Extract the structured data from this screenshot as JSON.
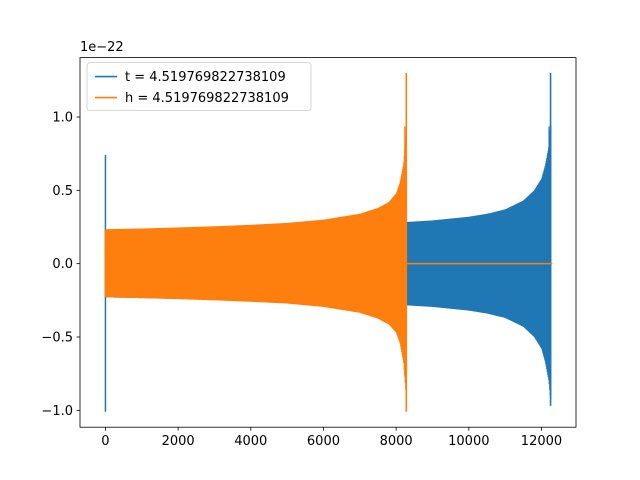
{
  "chart_data": {
    "type": "line",
    "offset_label": "1e−22",
    "xlim": [
      -700,
      12950
    ],
    "ylim": [
      -1.115,
      1.405
    ],
    "xticks": [
      0,
      2000,
      4000,
      6000,
      8000,
      10000,
      12000
    ],
    "xtick_labels": [
      "0",
      "2000",
      "4000",
      "6000",
      "8000",
      "10000",
      "12000"
    ],
    "yticks": [
      -1.0,
      -0.5,
      0.0,
      0.5,
      1.0
    ],
    "ytick_labels": [
      "−1.0",
      "−0.5",
      "0.0",
      "0.5",
      "1.0"
    ],
    "grid": false,
    "legend_position": "top-left",
    "series": [
      {
        "name": "t = 4.519769822738109",
        "color": "#1f77b4",
        "envelope": {
          "x": [
            0,
            1000,
            2000,
            3000,
            4000,
            5000,
            6000,
            7000,
            8000,
            9000,
            10000,
            10500,
            11000,
            11500,
            11800,
            12000,
            12100,
            12200,
            12260,
            12300
          ],
          "upper": [
            0.23,
            0.235,
            0.24,
            0.245,
            0.25,
            0.255,
            0.262,
            0.27,
            0.28,
            0.295,
            0.32,
            0.34,
            0.37,
            0.43,
            0.5,
            0.58,
            0.67,
            0.8,
            1.0,
            0.0
          ],
          "lower": [
            -0.23,
            -0.235,
            -0.24,
            -0.245,
            -0.25,
            -0.255,
            -0.262,
            -0.27,
            -0.28,
            -0.295,
            -0.32,
            -0.34,
            -0.37,
            -0.43,
            -0.5,
            -0.58,
            -0.67,
            -0.8,
            -0.97,
            0.0
          ]
        },
        "peak": {
          "x": 12250,
          "max": 1.3,
          "min": -0.97
        },
        "start_spike": {
          "x": 0,
          "max": 0.74,
          "min": -1.01
        }
      },
      {
        "name": "h = 4.519769822738109",
        "color": "#ff7f0e",
        "envelope": {
          "x": [
            0,
            1000,
            2000,
            3000,
            4000,
            5000,
            6000,
            7000,
            7500,
            7800,
            8000,
            8100,
            8200,
            8270,
            8300
          ],
          "upper": [
            0.235,
            0.24,
            0.247,
            0.255,
            0.265,
            0.278,
            0.3,
            0.34,
            0.38,
            0.42,
            0.48,
            0.55,
            0.68,
            0.9,
            0.0
          ],
          "lower": [
            -0.23,
            -0.235,
            -0.242,
            -0.25,
            -0.26,
            -0.272,
            -0.295,
            -0.335,
            -0.375,
            -0.415,
            -0.47,
            -0.54,
            -0.67,
            -0.9,
            0.0
          ]
        },
        "peak": {
          "x": 8280,
          "max": 1.3,
          "min": -1.01
        },
        "flat_after": {
          "x_start": 8300,
          "x_end": 12300,
          "value": 0.0
        }
      }
    ]
  }
}
